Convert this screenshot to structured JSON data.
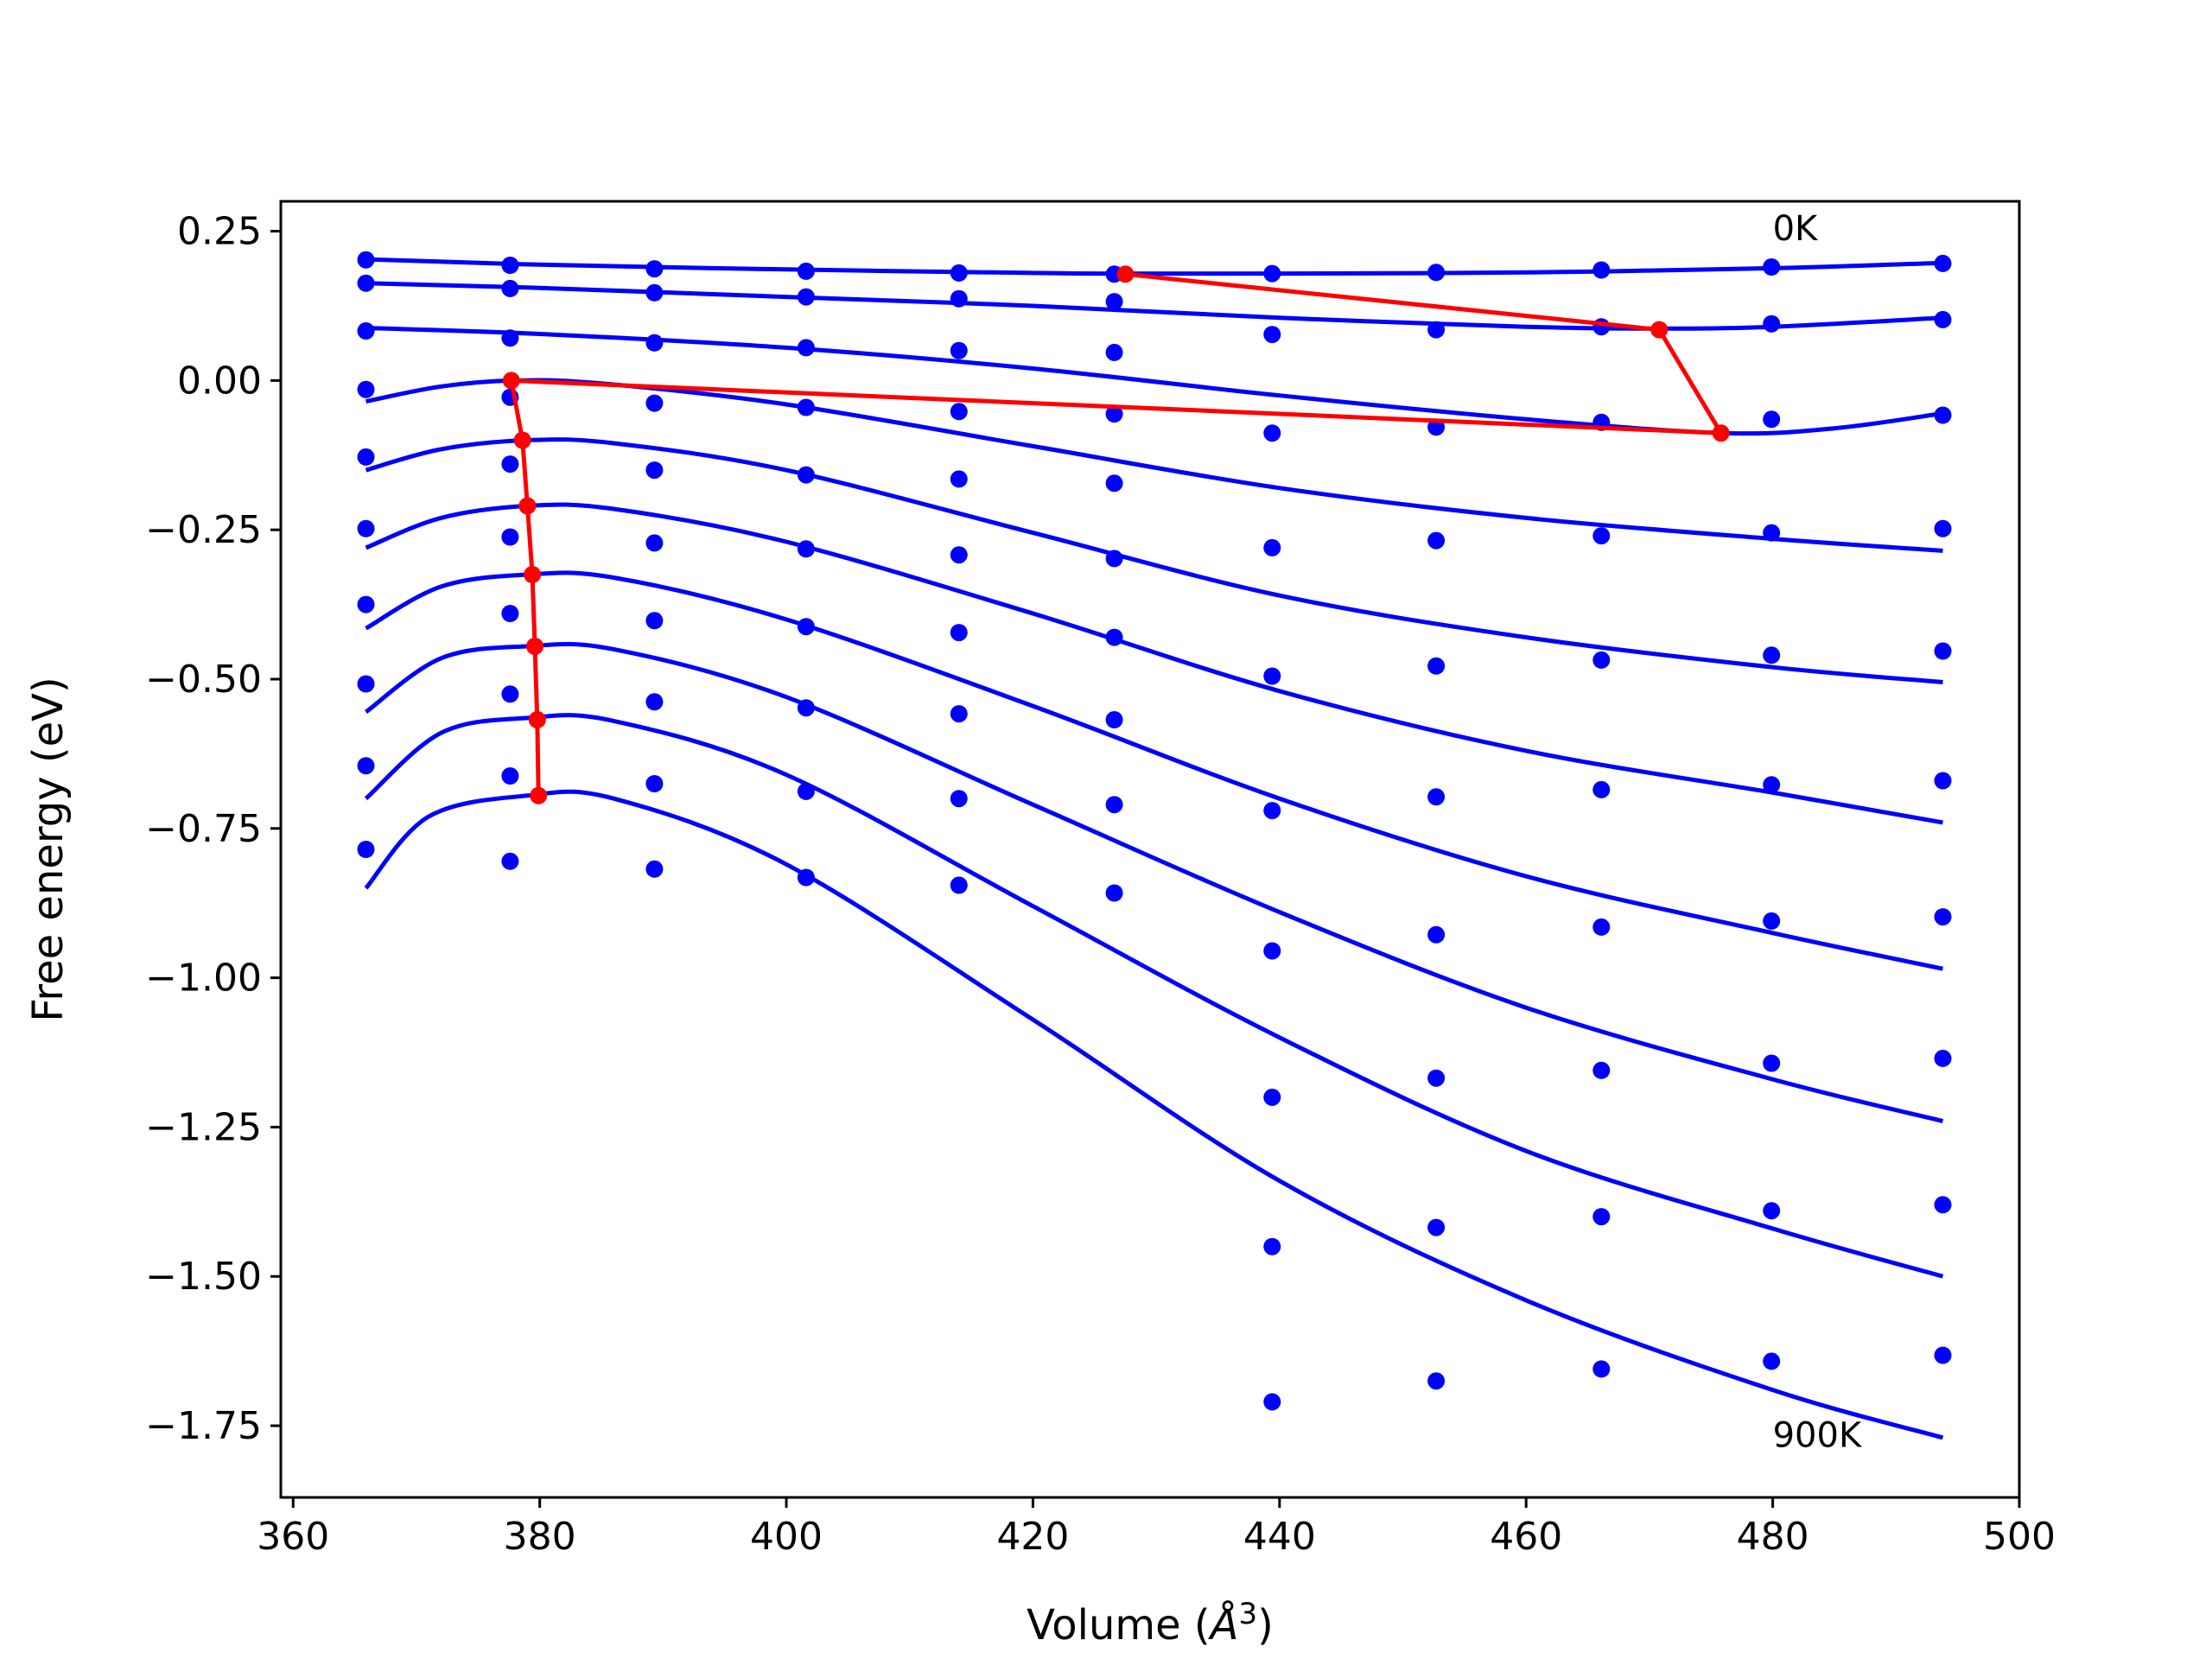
{
  "chart_data": {
    "type": "line",
    "title": "",
    "xlabel_prefix": "Volume (",
    "xlabel_unit": "Å",
    "xlabel_exp": "3",
    "xlabel_suffix": ")",
    "ylabel": "Free energy (eV)",
    "xlim": [
      359,
      500
    ],
    "ylim": [
      -1.87,
      0.3
    ],
    "xticks": [
      360,
      380,
      400,
      420,
      440,
      460,
      480,
      500
    ],
    "xtick_labels": [
      "360",
      "380",
      "400",
      "420",
      "440",
      "460",
      "480",
      "500"
    ],
    "yticks": [
      0.25,
      0.0,
      -0.25,
      -0.5,
      -0.75,
      -1.0,
      -1.25,
      -1.5,
      -1.75
    ],
    "ytick_labels": [
      "0.25",
      "0.00",
      "−0.25",
      "−0.50",
      "−0.75",
      "−1.00",
      "−1.25",
      "−1.50",
      "−1.75"
    ],
    "grid": false,
    "legend": "none",
    "colors": {
      "points": "#0000ff",
      "curves": "#0000ff",
      "min_path": "#ff0000"
    },
    "annotations": [
      {
        "text": "0K",
        "x": 480,
        "y": 0.255
      },
      {
        "text": "900K",
        "x": 480,
        "y": -1.765
      }
    ],
    "point_x": [
      365.9,
      377.6,
      389.3,
      401.6,
      414.0,
      426.6,
      439.4,
      452.7,
      466.1,
      479.9,
      493.8
    ],
    "series": [
      {
        "points": [
          0.202,
          0.193,
          0.187,
          0.183,
          0.18,
          0.178,
          0.179,
          0.181,
          0.185,
          0.19,
          0.196
        ],
        "curve_x": [
          365.9,
          380,
          400,
          420,
          427,
          440,
          460,
          480,
          493.8
        ],
        "curve_y": [
          0.203,
          0.194,
          0.186,
          0.18,
          0.179,
          0.179,
          0.181,
          0.188,
          0.197
        ]
      },
      {
        "points": [
          0.163,
          0.154,
          0.147,
          0.14,
          0.137,
          0.132,
          0.077,
          0.085,
          0.09,
          0.095,
          0.102
        ],
        "curve_x": [
          365.9,
          380,
          400,
          420,
          440,
          460,
          471,
          480,
          493.8
        ],
        "curve_y": [
          0.163,
          0.155,
          0.14,
          0.125,
          0.105,
          0.09,
          0.087,
          0.09,
          0.105
        ]
      },
      {
        "points": [
          0.083,
          0.071,
          0.063,
          0.055,
          0.05,
          0.047,
          -0.088,
          -0.078,
          -0.07,
          -0.065,
          -0.058
        ],
        "curve_x": [
          365.9,
          380,
          400,
          420,
          440,
          460,
          476,
          485,
          493.8
        ],
        "curve_y": [
          0.088,
          0.078,
          0.055,
          0.02,
          -0.025,
          -0.065,
          -0.088,
          -0.08,
          -0.055
        ]
      },
      {
        "points": [
          -0.015,
          -0.028,
          -0.038,
          -0.045,
          -0.052,
          -0.056,
          -0.28,
          -0.268,
          -0.26,
          -0.255,
          -0.248
        ],
        "curve_x": [
          365.9,
          372,
          378,
          385,
          400,
          420,
          440,
          460,
          480,
          493.8
        ],
        "curve_y": [
          -0.035,
          -0.01,
          0.0,
          -0.005,
          -0.04,
          -0.11,
          -0.18,
          -0.23,
          -0.265,
          -0.285
        ]
      },
      {
        "points": [
          -0.128,
          -0.14,
          -0.15,
          -0.158,
          -0.165,
          -0.172,
          -0.495,
          -0.478,
          -0.468,
          -0.46,
          -0.453
        ],
        "curve_x": [
          365.9,
          372,
          379,
          386,
          400,
          420,
          440,
          460,
          480,
          493.8
        ],
        "curve_y": [
          -0.15,
          -0.115,
          -0.1,
          -0.105,
          -0.15,
          -0.255,
          -0.36,
          -0.43,
          -0.48,
          -0.505
        ]
      },
      {
        "points": [
          -0.248,
          -0.262,
          -0.272,
          -0.282,
          -0.292,
          -0.298,
          -0.72,
          -0.697,
          -0.685,
          -0.677,
          -0.67
        ],
        "curve_x": [
          365.9,
          372,
          379,
          386,
          400,
          420,
          440,
          460,
          480,
          493.8
        ],
        "curve_y": [
          -0.28,
          -0.23,
          -0.21,
          -0.215,
          -0.27,
          -0.39,
          -0.52,
          -0.62,
          -0.69,
          -0.74
        ]
      },
      {
        "points": [
          -0.375,
          -0.39,
          -0.402,
          -0.412,
          -0.422,
          -0.43,
          -0.955,
          -0.928,
          -0.915,
          -0.905,
          -0.898
        ],
        "curve_x": [
          365.9,
          372,
          379,
          386,
          400,
          420,
          440,
          460,
          480,
          493.8
        ],
        "curve_y": [
          -0.415,
          -0.345,
          -0.325,
          -0.33,
          -0.4,
          -0.545,
          -0.7,
          -0.83,
          -0.925,
          -0.985
        ]
      },
      {
        "points": [
          -0.508,
          -0.525,
          -0.538,
          -0.548,
          -0.558,
          -0.568,
          -1.2,
          -1.168,
          -1.155,
          -1.143,
          -1.135
        ],
        "curve_x": [
          365.9,
          372,
          379,
          386,
          400,
          420,
          440,
          460,
          480,
          493.8
        ],
        "curve_y": [
          -0.555,
          -0.465,
          -0.445,
          -0.45,
          -0.53,
          -0.71,
          -0.89,
          -1.05,
          -1.17,
          -1.24
        ]
      },
      {
        "points": [
          -0.645,
          -0.662,
          -0.675,
          -0.688,
          -0.7,
          -0.71,
          -1.45,
          -1.418,
          -1.4,
          -1.39,
          -1.38
        ],
        "curve_x": [
          365.9,
          372,
          379,
          386,
          400,
          420,
          440,
          460,
          480,
          493.8
        ],
        "curve_y": [
          -0.7,
          -0.59,
          -0.565,
          -0.57,
          -0.66,
          -0.88,
          -1.1,
          -1.29,
          -1.42,
          -1.5
        ]
      },
      {
        "points": [
          -0.785,
          -0.805,
          -0.818,
          -0.832,
          -0.845,
          -0.858,
          -1.71,
          -1.675,
          -1.655,
          -1.642,
          -1.632
        ],
        "curve_x": [
          365.9,
          371,
          379,
          386,
          400,
          420,
          440,
          460,
          480,
          493.8
        ],
        "curve_y": [
          -0.85,
          -0.73,
          -0.695,
          -0.7,
          -0.81,
          -1.07,
          -1.34,
          -1.54,
          -1.69,
          -1.77
        ]
      }
    ],
    "min_path": {
      "x": [
        427.5,
        470.8,
        475.8,
        377.7,
        378.6,
        379.0,
        379.4,
        379.6,
        379.8,
        379.9
      ],
      "y": [
        0.178,
        0.085,
        -0.088,
        0.0,
        -0.1,
        -0.21,
        -0.325,
        -0.445,
        -0.568,
        -0.695
      ]
    }
  }
}
